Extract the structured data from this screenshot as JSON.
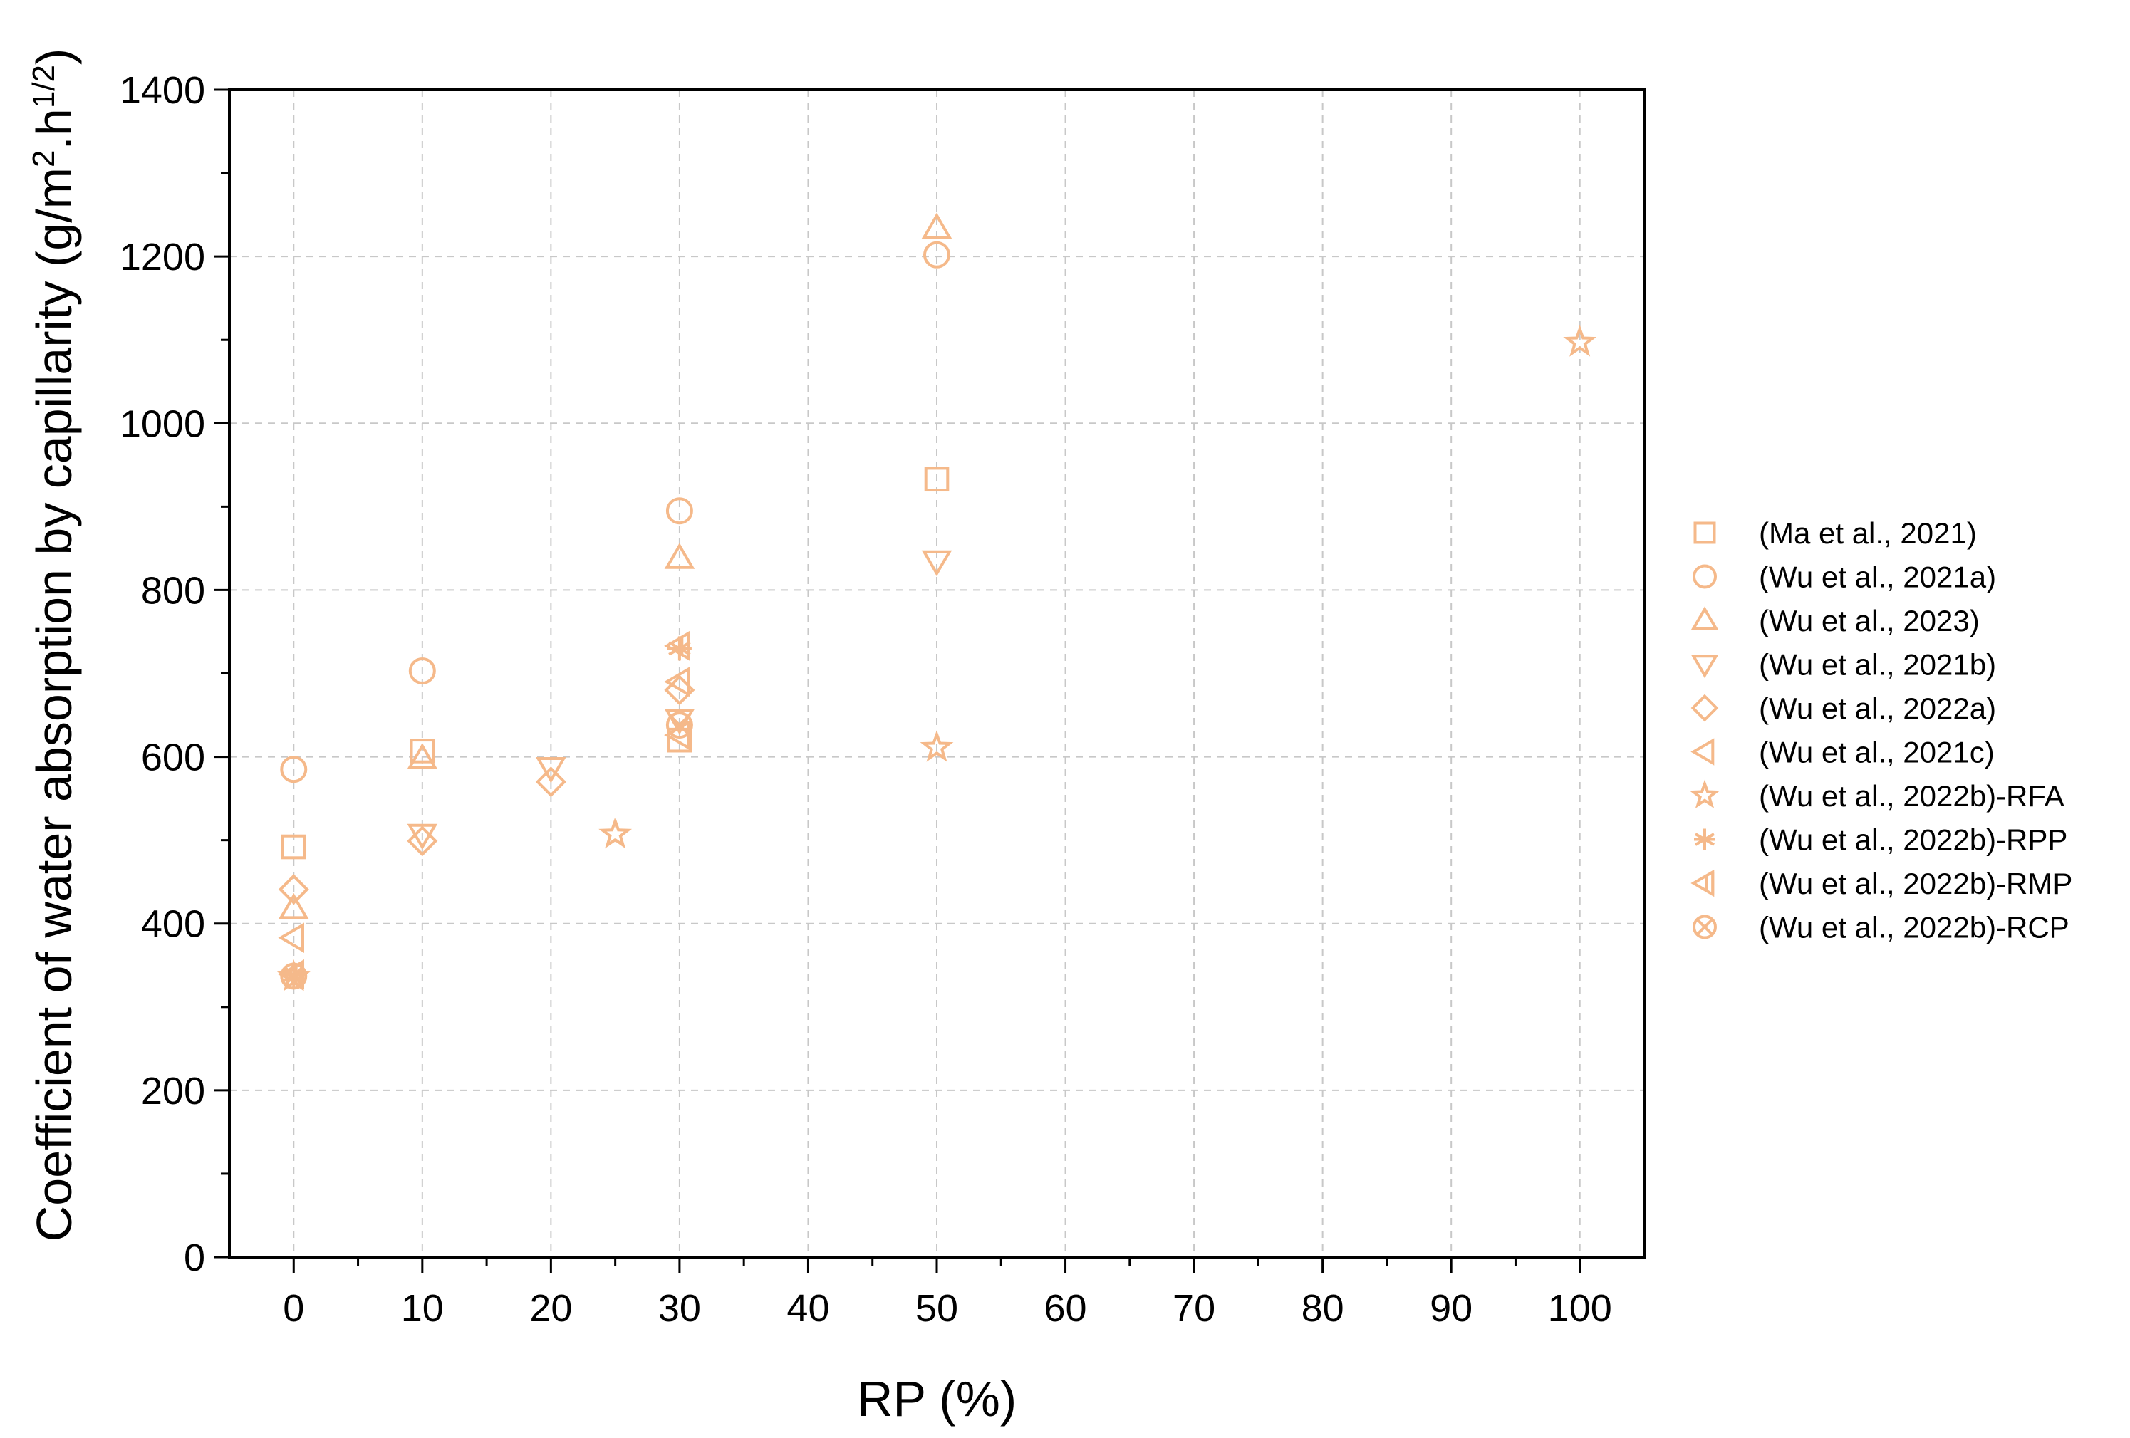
{
  "chart_data": {
    "type": "scatter",
    "xlabel": "RP (%)",
    "ylabel_main": "Coefficient of water absorption by capillarity (g/m",
    "ylabel_sup1": "2",
    "ylabel_mid": ".h",
    "ylabel_sup2": "1/2",
    "ylabel_end": ")",
    "xlim": [
      -5,
      105
    ],
    "ylim": [
      0,
      1400
    ],
    "x_ticks": [
      0,
      10,
      20,
      30,
      40,
      50,
      60,
      70,
      80,
      90,
      100
    ],
    "y_ticks": [
      0,
      200,
      400,
      600,
      800,
      1000,
      1200,
      1400
    ],
    "x_tick_labels": [
      "0",
      "10",
      "20",
      "30",
      "40",
      "50",
      "60",
      "70",
      "80",
      "90",
      "100"
    ],
    "y_tick_labels": [
      "0",
      "200",
      "400",
      "600",
      "800",
      "1000",
      "1200",
      "1400"
    ],
    "grid": true,
    "legend_position": "right",
    "marker_color": "#f5b98a",
    "series": [
      {
        "name": "(Ma et al., 2021)",
        "marker": "square",
        "x": [
          0,
          10,
          30,
          50
        ],
        "y": [
          492,
          607,
          620,
          933
        ]
      },
      {
        "name": "(Wu et al., 2021a)",
        "marker": "circle",
        "x": [
          0,
          10,
          30,
          50
        ],
        "y": [
          585,
          703,
          895,
          1202
        ]
      },
      {
        "name": "(Wu et al., 2023)",
        "marker": "triangle-up",
        "x": [
          0,
          10,
          30,
          50
        ],
        "y": [
          418,
          598,
          838,
          1234
        ]
      },
      {
        "name": "(Wu et al., 2021b)",
        "marker": "triangle-down",
        "x": [
          10,
          20,
          30,
          50
        ],
        "y": [
          507,
          587,
          645,
          835
        ]
      },
      {
        "name": "(Wu et al., 2022a)",
        "marker": "diamond",
        "x": [
          0,
          10,
          20,
          30
        ],
        "y": [
          441,
          499,
          570,
          680
        ]
      },
      {
        "name": "(Wu et al., 2021c)",
        "marker": "triangle-left",
        "x": [
          0,
          30,
          30
        ],
        "y": [
          383,
          690,
          626
        ]
      },
      {
        "name": "(Wu et al., 2022b)-RFA",
        "marker": "star",
        "x": [
          0,
          25,
          50,
          100
        ],
        "y": [
          336,
          507,
          611,
          1097
        ]
      },
      {
        "name": "(Wu et al., 2022b)-RPP",
        "marker": "asterisk",
        "x": [
          0,
          30
        ],
        "y": [
          338,
          730
        ]
      },
      {
        "name": "(Wu et al., 2022b)-RMP",
        "marker": "bar-triangle-left",
        "x": [
          0,
          30
        ],
        "y": [
          339,
          733
        ]
      },
      {
        "name": "(Wu et al., 2022b)-RCP",
        "marker": "circle-x",
        "x": [
          0,
          30
        ],
        "y": [
          337,
          638
        ]
      }
    ]
  }
}
